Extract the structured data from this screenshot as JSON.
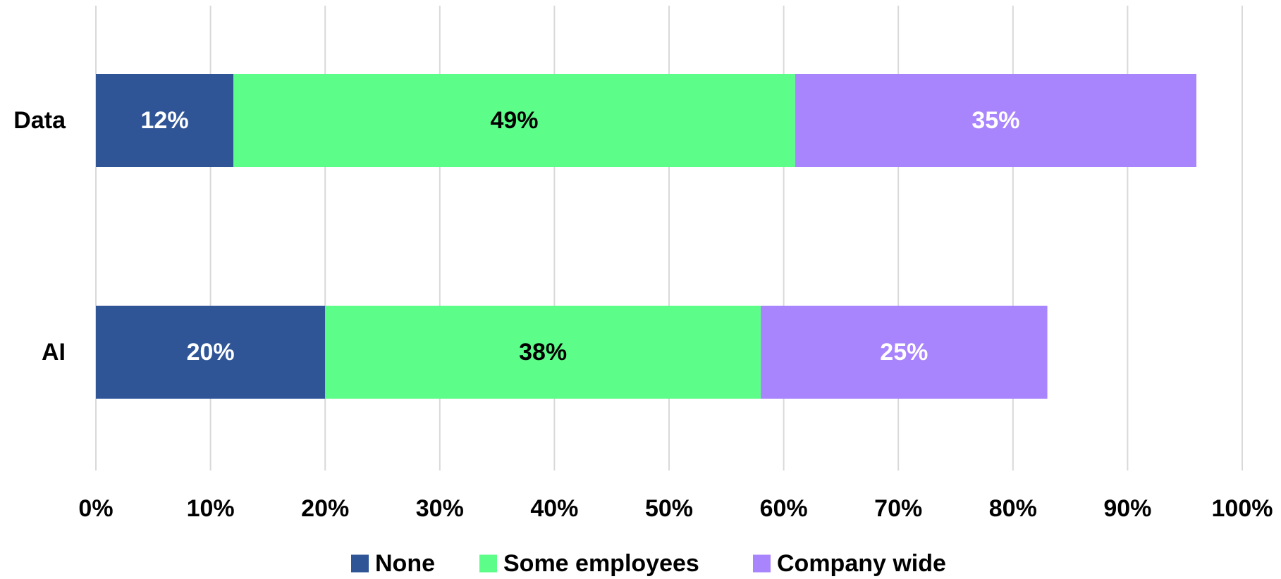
{
  "chart_data": {
    "type": "bar",
    "orientation": "horizontal",
    "stacked": true,
    "title": "",
    "xlabel": "",
    "ylabel": "",
    "categories": [
      "Data",
      "AI"
    ],
    "series": [
      {
        "name": "None",
        "values": [
          12,
          20
        ],
        "labels": [
          "12%",
          "20%"
        ],
        "color": "#2f5597",
        "label_color": "#ffffff"
      },
      {
        "name": "Some employees",
        "values": [
          49,
          38
        ],
        "labels": [
          "49%",
          "38%"
        ],
        "color": "#5dfd8a",
        "label_color": "#000000"
      },
      {
        "name": "Company wide",
        "values": [
          35,
          25
        ],
        "labels": [
          "35%",
          "25%"
        ],
        "color": "#a884fd",
        "label_color": "#ffffff"
      }
    ],
    "xlim": [
      0,
      100
    ],
    "x_ticks": [
      0,
      10,
      20,
      30,
      40,
      50,
      60,
      70,
      80,
      90,
      100
    ],
    "x_tick_labels": [
      "0%",
      "10%",
      "20%",
      "30%",
      "40%",
      "50%",
      "60%",
      "70%",
      "80%",
      "90%",
      "100%"
    ],
    "grid": true,
    "gridline_color": "#d9d9d9",
    "legend": "bottom"
  }
}
